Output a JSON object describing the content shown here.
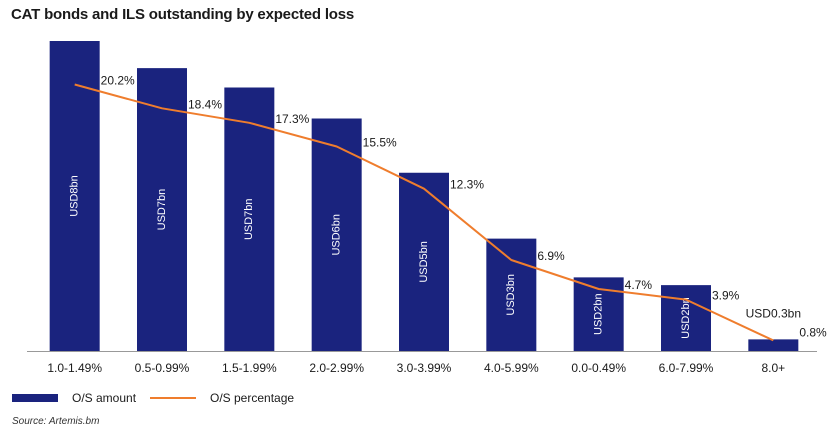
{
  "title": "CAT bonds and ILS outstanding by expected loss",
  "source": "Source: Artemis.bm",
  "colors": {
    "bar": "#1a237e",
    "line": "#ef7d2d",
    "axis": "#999999"
  },
  "legend": {
    "bar_label": "O/S amount",
    "line_label": "O/S percentage"
  },
  "chart_data": {
    "type": "bar",
    "categories": [
      "1.0-1.49%",
      "0.5-0.99%",
      "1.5-1.99%",
      "2.0-2.99%",
      "3.0-3.99%",
      "4.0-5.99%",
      "0.0-0.49%",
      "6.0-7.99%",
      "8.0+"
    ],
    "series": [
      {
        "name": "O/S amount",
        "type": "bar",
        "values": [
          8.0,
          7.3,
          6.8,
          6.0,
          4.6,
          2.9,
          1.9,
          1.7,
          0.3
        ],
        "labels": [
          "USD8bn",
          "USD7bn",
          "USD7bn",
          "USD6bn",
          "USD5bn",
          "USD3bn",
          "USD2bn",
          "USD2bn",
          "USD0.3bn"
        ]
      },
      {
        "name": "O/S percentage",
        "type": "line",
        "values": [
          20.2,
          18.4,
          17.3,
          15.5,
          12.3,
          6.9,
          4.7,
          3.9,
          0.8
        ],
        "labels": [
          "20.2%",
          "18.4%",
          "17.3%",
          "15.5%",
          "12.3%",
          "6.9%",
          "4.7%",
          "3.9%",
          "0.8%"
        ]
      }
    ],
    "ylim": [
      0,
      8.0
    ],
    "y2lim": [
      0,
      23.5
    ],
    "grid": false,
    "legend_position": "bottom-left"
  }
}
